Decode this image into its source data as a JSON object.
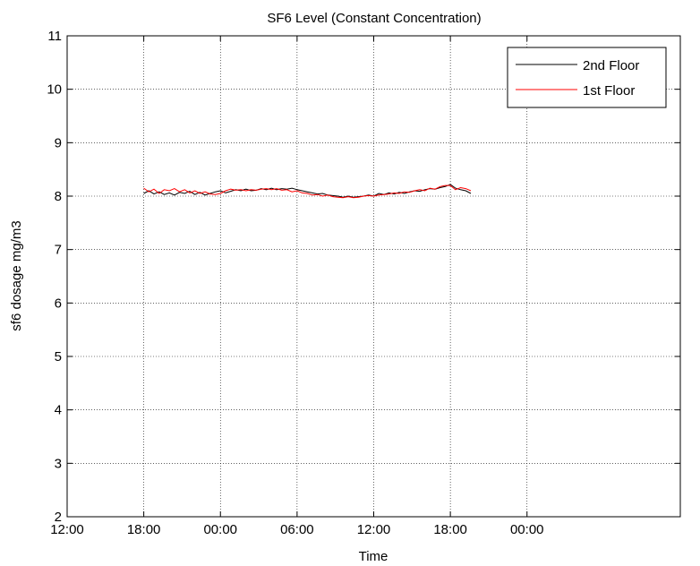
{
  "chart_data": {
    "type": "line",
    "title": "SF6 Level (Constant Concentration)",
    "xlabel": "Time",
    "ylabel": "sf6 dosage mg/m3",
    "xlim": [
      0,
      48
    ],
    "ylim": [
      2,
      11
    ],
    "x_ticks": [
      {
        "value": 0,
        "label": "12:00"
      },
      {
        "value": 6,
        "label": "18:00"
      },
      {
        "value": 12,
        "label": "00:00"
      },
      {
        "value": 18,
        "label": "06:00"
      },
      {
        "value": 24,
        "label": "12:00"
      },
      {
        "value": 30,
        "label": "18:00"
      },
      {
        "value": 36,
        "label": "00:00"
      }
    ],
    "y_ticks": [
      2,
      3,
      4,
      5,
      6,
      7,
      8,
      9,
      10,
      11
    ],
    "grid": true,
    "legend_position": "top-right",
    "series": [
      {
        "name": "2nd Floor",
        "color": "#000000",
        "x": [
          6.0,
          6.4,
          6.8,
          7.2,
          7.6,
          8.0,
          8.4,
          8.8,
          9.2,
          9.6,
          10.0,
          10.4,
          10.8,
          11.2,
          11.6,
          12.0,
          12.4,
          12.8,
          13.2,
          13.6,
          14.0,
          14.4,
          14.8,
          15.2,
          15.6,
          16.0,
          16.4,
          16.8,
          17.2,
          17.6,
          18.0,
          18.4,
          18.8,
          19.2,
          19.6,
          20.0,
          20.4,
          20.8,
          21.2,
          21.6,
          22.0,
          22.4,
          22.8,
          23.2,
          23.6,
          24.0,
          24.4,
          24.8,
          25.2,
          25.6,
          26.0,
          26.4,
          26.8,
          27.2,
          27.6,
          28.0,
          28.4,
          28.8,
          29.2,
          29.6,
          30.0,
          30.4,
          30.8,
          31.2,
          31.6
        ],
        "y": [
          8.05,
          8.1,
          8.04,
          8.08,
          8.03,
          8.06,
          8.02,
          8.07,
          8.05,
          8.09,
          8.03,
          8.07,
          8.02,
          8.05,
          8.08,
          8.1,
          8.06,
          8.09,
          8.12,
          8.1,
          8.13,
          8.1,
          8.11,
          8.14,
          8.12,
          8.15,
          8.12,
          8.14,
          8.13,
          8.15,
          8.12,
          8.1,
          8.08,
          8.06,
          8.04,
          8.05,
          8.02,
          8.01,
          8.0,
          7.98,
          8.0,
          7.98,
          7.99,
          8.0,
          8.02,
          8.0,
          8.05,
          8.03,
          8.06,
          8.04,
          8.07,
          8.05,
          8.08,
          8.1,
          8.09,
          8.12,
          8.14,
          8.13,
          8.16,
          8.18,
          8.22,
          8.15,
          8.12,
          8.1,
          8.05
        ]
      },
      {
        "name": "1st Floor",
        "color": "#ff0000",
        "x": [
          6.0,
          6.4,
          6.8,
          7.2,
          7.6,
          8.0,
          8.4,
          8.8,
          9.2,
          9.6,
          10.0,
          10.4,
          10.8,
          11.2,
          11.6,
          12.0,
          12.4,
          12.8,
          13.2,
          13.6,
          14.0,
          14.4,
          14.8,
          15.2,
          15.6,
          16.0,
          16.4,
          16.8,
          17.2,
          17.6,
          18.0,
          18.4,
          18.8,
          19.2,
          19.6,
          20.0,
          20.4,
          20.8,
          21.2,
          21.6,
          22.0,
          22.4,
          22.8,
          23.2,
          23.6,
          24.0,
          24.4,
          24.8,
          25.2,
          25.6,
          26.0,
          26.4,
          26.8,
          27.2,
          27.6,
          28.0,
          28.4,
          28.8,
          29.2,
          29.6,
          30.0,
          30.4,
          30.8,
          31.2,
          31.6
        ],
        "y": [
          8.15,
          8.08,
          8.13,
          8.05,
          8.12,
          8.1,
          8.14,
          8.08,
          8.12,
          8.06,
          8.1,
          8.05,
          8.08,
          8.04,
          8.03,
          8.05,
          8.1,
          8.13,
          8.11,
          8.12,
          8.1,
          8.12,
          8.11,
          8.13,
          8.14,
          8.12,
          8.14,
          8.11,
          8.12,
          8.08,
          8.1,
          8.06,
          8.05,
          8.02,
          8.03,
          8.0,
          8.02,
          7.99,
          7.98,
          7.97,
          7.99,
          7.97,
          7.98,
          8.0,
          8.01,
          8.0,
          8.02,
          8.03,
          8.04,
          8.06,
          8.05,
          8.08,
          8.07,
          8.1,
          8.12,
          8.1,
          8.15,
          8.13,
          8.18,
          8.2,
          8.2,
          8.12,
          8.16,
          8.14,
          8.1
        ]
      }
    ]
  }
}
